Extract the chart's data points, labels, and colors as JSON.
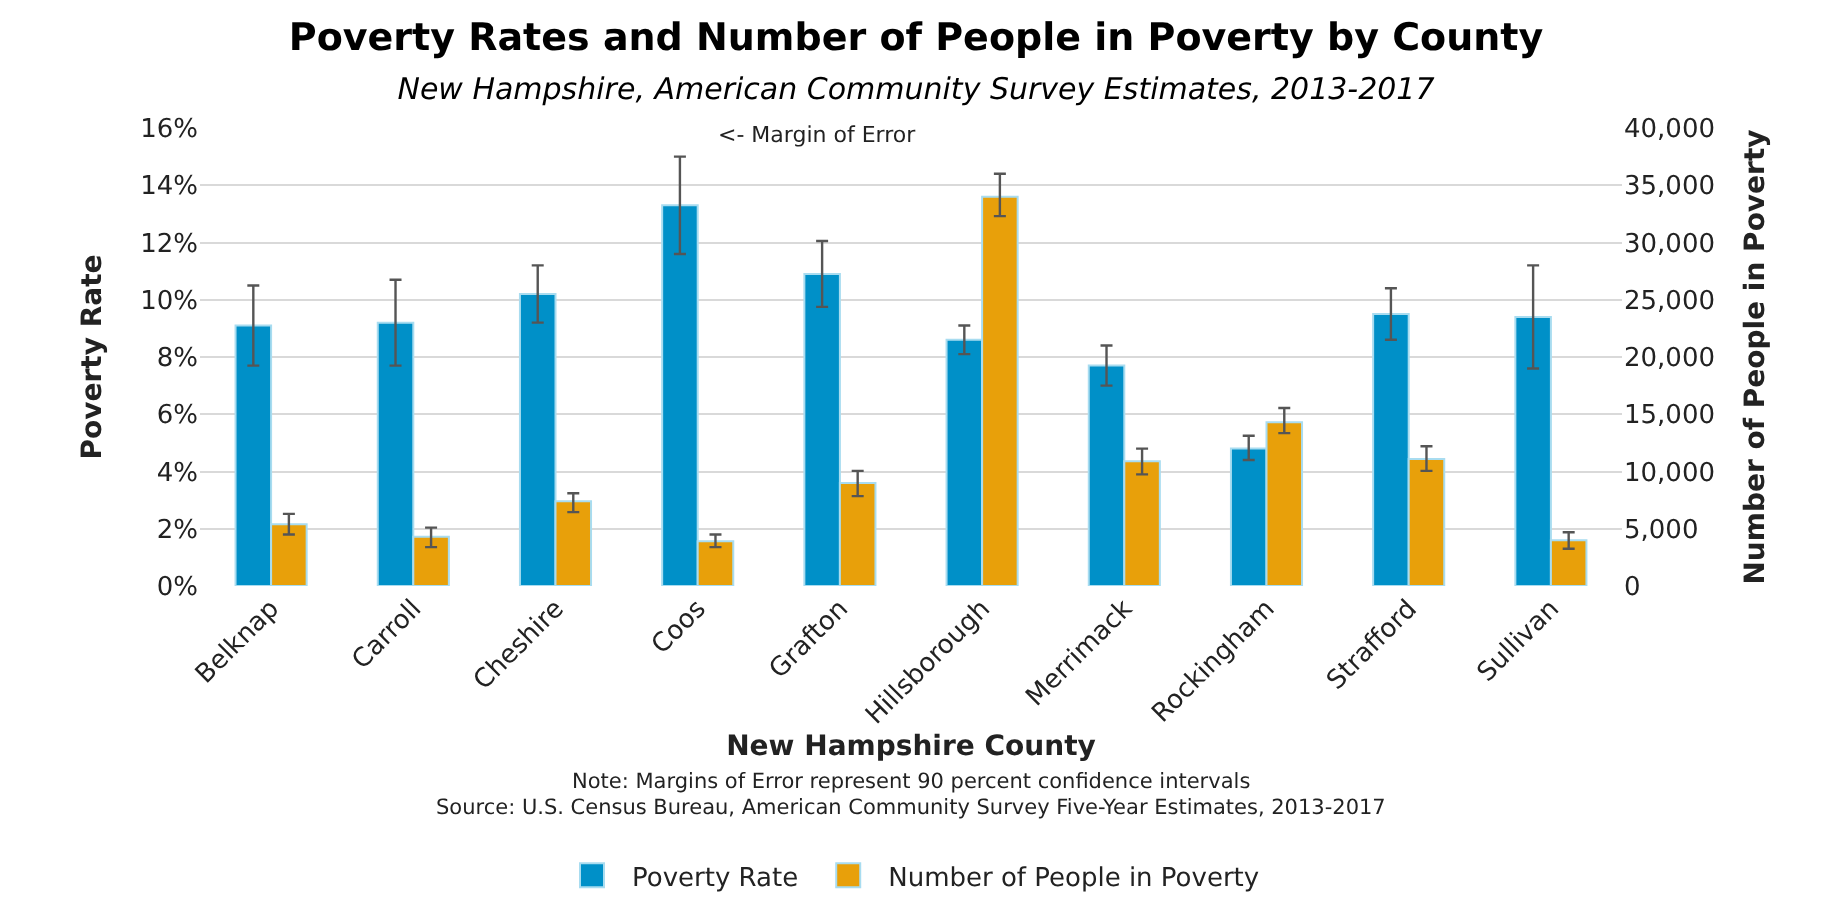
{
  "chart_data": {
    "type": "bar",
    "title": "Poverty Rates and Number of People in Poverty by County",
    "subtitle": "New Hampshire, American Community Survey Estimates, 2013-2017",
    "xlabel": "New Hampshire County",
    "ylabel": "Poverty Rate",
    "y2label": "Number of People in Poverty",
    "categories": [
      "Belknap",
      "Carroll",
      "Cheshire",
      "Coos",
      "Grafton",
      "Hillsborough",
      "Merrimack",
      "Rockingham",
      "Strafford",
      "Sullivan"
    ],
    "series": [
      {
        "name": "Poverty Rate",
        "color": "#0090c8",
        "values": [
          9.1,
          9.2,
          10.2,
          13.3,
          10.9,
          8.6,
          7.7,
          4.8,
          9.5,
          9.4
        ],
        "errors": [
          [
            7.7,
            10.5
          ],
          [
            7.7,
            10.7
          ],
          [
            9.2,
            11.2
          ],
          [
            11.6,
            15.0
          ],
          [
            9.75,
            12.05
          ],
          [
            8.1,
            9.1
          ],
          [
            7.0,
            8.4
          ],
          [
            4.4,
            5.25
          ],
          [
            8.6,
            10.4
          ],
          [
            7.6,
            11.2
          ]
        ]
      },
      {
        "name": "Number of People in Poverty",
        "color": "#e8a00a",
        "axis": "y2",
        "values": [
          5400,
          4300,
          7400,
          3900,
          9000,
          34000,
          10900,
          14300,
          11100,
          4000
        ],
        "errors": [
          [
            4500,
            6300
          ],
          [
            3400,
            5100
          ],
          [
            6450,
            8100
          ],
          [
            3400,
            4500
          ],
          [
            7850,
            10050
          ],
          [
            32300,
            36000
          ],
          [
            9750,
            12000
          ],
          [
            13350,
            15550
          ],
          [
            10050,
            12200
          ],
          [
            3250,
            4700
          ]
        ]
      }
    ],
    "ylim": [
      0,
      16
    ],
    "yticks": [
      {
        "value": 0,
        "label": "0%"
      },
      {
        "value": 2,
        "label": "2%"
      },
      {
        "value": 4,
        "label": "4%"
      },
      {
        "value": 6,
        "label": "6%"
      },
      {
        "value": 8,
        "label": "8%"
      },
      {
        "value": 10,
        "label": "10%"
      },
      {
        "value": 12,
        "label": "12%"
      },
      {
        "value": 14,
        "label": "14%"
      },
      {
        "value": 16,
        "label": "16%"
      }
    ],
    "y2lim": [
      0,
      40000
    ],
    "y2ticks": [
      0,
      {
        "value": 5000,
        "label": "5,000"
      },
      {
        "value": 10000,
        "label": "10,000"
      },
      {
        "value": 15000,
        "label": "15,000"
      },
      {
        "value": 20000,
        "label": "20,000"
      },
      {
        "value": 25000,
        "label": "25,000"
      },
      {
        "value": 30000,
        "label": "30,000"
      },
      {
        "value": 35000,
        "label": "35,000"
      },
      {
        "value": 40000,
        "label": "40,000"
      }
    ],
    "grid": "y",
    "legend": "bottom",
    "annotations": [
      "<- Margin of Error",
      "Note: Margins of Error represent 90 percent confidence intervals",
      "Source: U.S. Census Bureau, American Community Survey Five-Year Estimates, 2013-2017"
    ]
  }
}
